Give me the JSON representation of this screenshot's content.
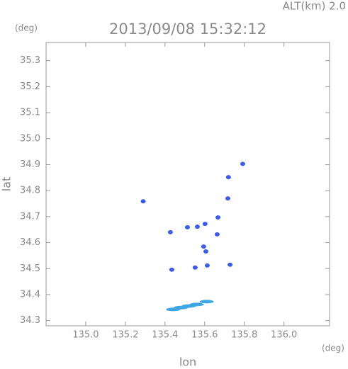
{
  "chart_data": {
    "type": "scatter",
    "title": "2013/09/08 15:32:12",
    "subtitle": "ALT(km) 2.0",
    "x_label": "lon",
    "y_label": "lat",
    "x_unit": "(deg)",
    "y_unit": "(deg)",
    "xlim": [
      134.8,
      136.23
    ],
    "ylim": [
      34.28,
      35.37
    ],
    "xticks": [
      {
        "value": 135.0,
        "label": "135.0"
      },
      135.2,
      135.4,
      135.6,
      135.8,
      {
        "value": 136.0,
        "label": "136.0"
      }
    ],
    "yticks": [
      34.3,
      34.4,
      34.5,
      34.6,
      34.7,
      34.8,
      34.9,
      {
        "value": 35.0,
        "label": "35.0"
      },
      35.1,
      35.2,
      35.3
    ],
    "grid": false,
    "series": [
      {
        "color": "#3b5cf0",
        "x": [
          135.792,
          135.29,
          135.427,
          135.606,
          135.613,
          135.552,
          135.434,
          135.667,
          135.602,
          135.563,
          135.513,
          135.663,
          135.595,
          135.728,
          135.72,
          135.717
        ],
        "y": [
          34.903,
          34.759,
          34.64,
          34.566,
          34.512,
          34.504,
          34.496,
          34.697,
          34.672,
          34.661,
          34.659,
          34.632,
          34.585,
          34.515,
          34.852,
          34.77
        ]
      },
      {
        "color": "#3fa6e6",
        "x": [
          135.441,
          135.48,
          135.52,
          135.56,
          135.61
        ],
        "y": [
          34.343,
          34.35,
          34.356,
          34.362,
          34.373
        ]
      }
    ]
  }
}
